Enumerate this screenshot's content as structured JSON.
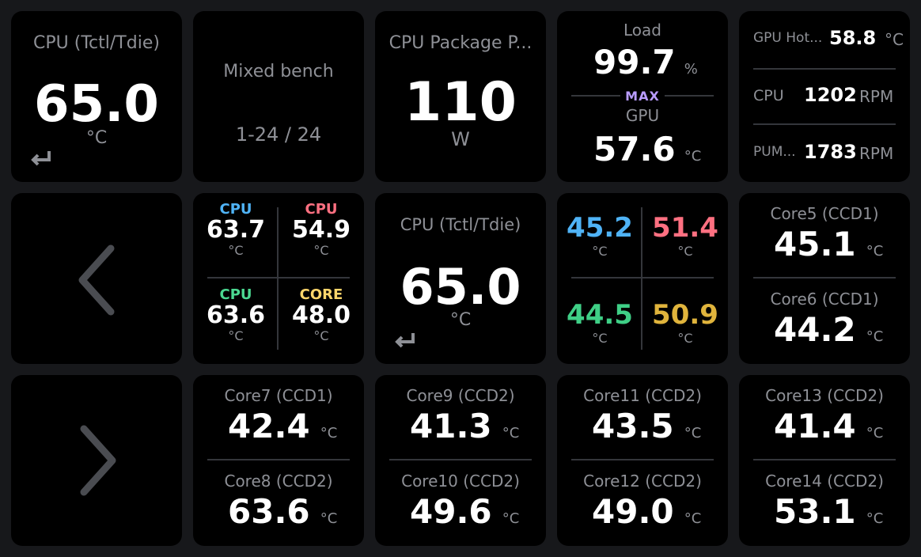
{
  "colors": {
    "blue": "#4fb3f6",
    "red": "#ff7081",
    "green": "#4bd891",
    "yellow": "#ffd66b",
    "purple": "#b99cff",
    "gold": "#e0b43c",
    "teal": "#3fcf86"
  },
  "tiles": {
    "cpu_temp": {
      "label": "CPU (Tctl/Tdie)",
      "value": "65.0",
      "unit": "°C",
      "icon": "enter-icon"
    },
    "bench": {
      "title": "Mixed bench",
      "page": "1-24 / 24"
    },
    "cpu_package": {
      "label": "CPU Package P...",
      "value": "110",
      "unit": "W"
    },
    "load": {
      "top_label": "Load",
      "top_value": "99.7",
      "top_unit": "%",
      "badge": "MAX",
      "bottom_label": "GPU",
      "bottom_value": "57.6",
      "bottom_unit": "°C"
    },
    "gpu_fans": {
      "rows": [
        {
          "label": "GPU Hot...",
          "value": "58.8",
          "unit": "°C"
        },
        {
          "label": "CPU",
          "value": "1202",
          "unit": "RPM"
        },
        {
          "label": "PUM...",
          "value": "1783",
          "unit": "RPM"
        }
      ]
    },
    "prev": {
      "icon": "chevron-left-icon"
    },
    "next": {
      "icon": "chevron-right-icon"
    },
    "quad_labeled": {
      "cells": [
        {
          "label": "CPU",
          "value": "63.7",
          "unit": "°C"
        },
        {
          "label": "CPU",
          "value": "54.9",
          "unit": "°C"
        },
        {
          "label": "CPU",
          "value": "63.6",
          "unit": "°C"
        },
        {
          "label": "CORE",
          "value": "48.0",
          "unit": "°C"
        }
      ]
    },
    "cpu_temp_2": {
      "label": "CPU (Tctl/Tdie)",
      "value": "65.0",
      "unit": "°C",
      "icon": "enter-icon"
    },
    "quad_colored": {
      "cells": [
        {
          "value": "45.2",
          "unit": "°C"
        },
        {
          "value": "51.4",
          "unit": "°C"
        },
        {
          "value": "44.5",
          "unit": "°C"
        },
        {
          "value": "50.9",
          "unit": "°C"
        }
      ]
    },
    "core56": {
      "top": {
        "label": "Core5 (CCD1)",
        "value": "45.1",
        "unit": "°C"
      },
      "bottom": {
        "label": "Core6 (CCD1)",
        "value": "44.2",
        "unit": "°C"
      }
    },
    "core78": {
      "top": {
        "label": "Core7 (CCD1)",
        "value": "42.4",
        "unit": "°C"
      },
      "bottom": {
        "label": "Core8 (CCD2)",
        "value": "63.6",
        "unit": "°C"
      }
    },
    "core910": {
      "top": {
        "label": "Core9 (CCD2)",
        "value": "41.3",
        "unit": "°C"
      },
      "bottom": {
        "label": "Core10 (CCD2)",
        "value": "49.6",
        "unit": "°C"
      }
    },
    "core1112": {
      "top": {
        "label": "Core11 (CCD2)",
        "value": "43.5",
        "unit": "°C"
      },
      "bottom": {
        "label": "Core12 (CCD2)",
        "value": "49.0",
        "unit": "°C"
      }
    },
    "core1314": {
      "top": {
        "label": "Core13 (CCD2)",
        "value": "41.4",
        "unit": "°C"
      },
      "bottom": {
        "label": "Core14 (CCD2)",
        "value": "53.1",
        "unit": "°C"
      }
    }
  }
}
